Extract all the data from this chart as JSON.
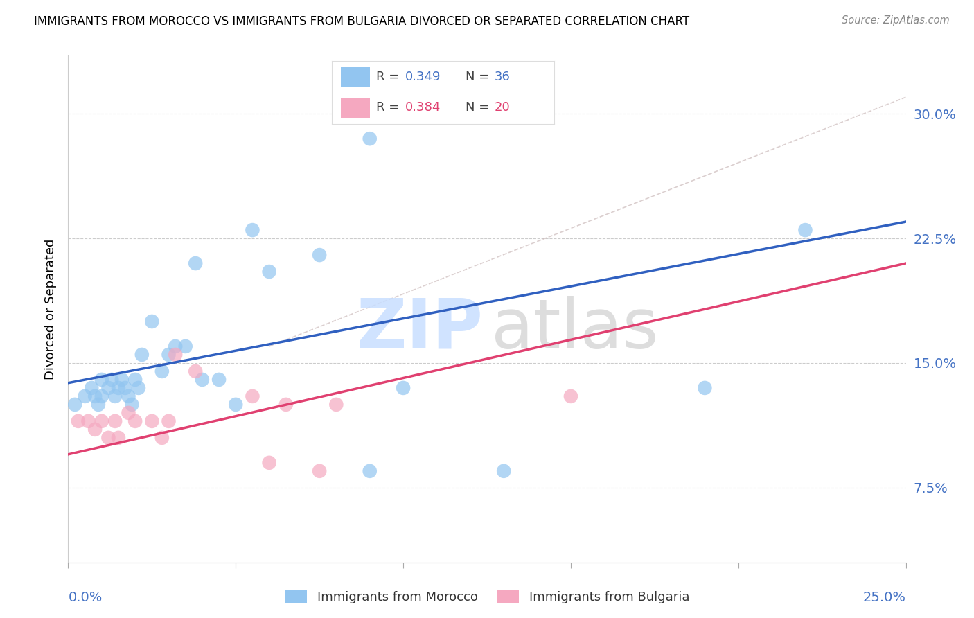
{
  "title": "IMMIGRANTS FROM MOROCCO VS IMMIGRANTS FROM BULGARIA DIVORCED OR SEPARATED CORRELATION CHART",
  "source": "Source: ZipAtlas.com",
  "ylabel": "Divorced or Separated",
  "ytick_labels": [
    "7.5%",
    "15.0%",
    "22.5%",
    "30.0%"
  ],
  "ytick_values": [
    0.075,
    0.15,
    0.225,
    0.3
  ],
  "xlim": [
    0.0,
    0.25
  ],
  "ylim": [
    0.03,
    0.335
  ],
  "color_morocco": "#92C5F0",
  "color_bulgaria": "#F5A8C0",
  "color_morocco_line": "#3060C0",
  "color_bulgaria_line": "#E04070",
  "morocco_x": [
    0.002,
    0.005,
    0.007,
    0.008,
    0.009,
    0.01,
    0.01,
    0.012,
    0.013,
    0.014,
    0.015,
    0.016,
    0.017,
    0.018,
    0.019,
    0.02,
    0.021,
    0.022,
    0.025,
    0.028,
    0.03,
    0.032,
    0.035,
    0.038,
    0.04,
    0.045,
    0.05,
    0.055,
    0.06,
    0.075,
    0.09,
    0.1,
    0.13,
    0.19,
    0.22,
    0.09
  ],
  "morocco_y": [
    0.125,
    0.13,
    0.135,
    0.13,
    0.125,
    0.14,
    0.13,
    0.135,
    0.14,
    0.13,
    0.135,
    0.14,
    0.135,
    0.13,
    0.125,
    0.14,
    0.135,
    0.155,
    0.175,
    0.145,
    0.155,
    0.16,
    0.16,
    0.21,
    0.14,
    0.14,
    0.125,
    0.23,
    0.205,
    0.215,
    0.085,
    0.135,
    0.085,
    0.135,
    0.23,
    0.285
  ],
  "bulgaria_x": [
    0.003,
    0.006,
    0.008,
    0.01,
    0.012,
    0.014,
    0.015,
    0.018,
    0.02,
    0.025,
    0.028,
    0.03,
    0.032,
    0.038,
    0.055,
    0.06,
    0.065,
    0.075,
    0.08,
    0.15
  ],
  "bulgaria_y": [
    0.115,
    0.115,
    0.11,
    0.115,
    0.105,
    0.115,
    0.105,
    0.12,
    0.115,
    0.115,
    0.105,
    0.115,
    0.155,
    0.145,
    0.13,
    0.09,
    0.125,
    0.085,
    0.125,
    0.13
  ],
  "morocco_line_x": [
    0.0,
    0.25
  ],
  "morocco_line_y": [
    0.138,
    0.235
  ],
  "bulgaria_line_x": [
    0.0,
    0.25
  ],
  "bulgaria_line_y": [
    0.095,
    0.21
  ],
  "dashed_line_x": [
    0.06,
    0.25
  ],
  "dashed_line_y": [
    0.16,
    0.31
  ],
  "legend_r1": "R = 0.349",
  "legend_n1": "N = 36",
  "legend_r2": "R = 0.384",
  "legend_n2": "N = 20",
  "legend_label1": "Immigrants from Morocco",
  "legend_label2": "Immigrants from Bulgaria"
}
